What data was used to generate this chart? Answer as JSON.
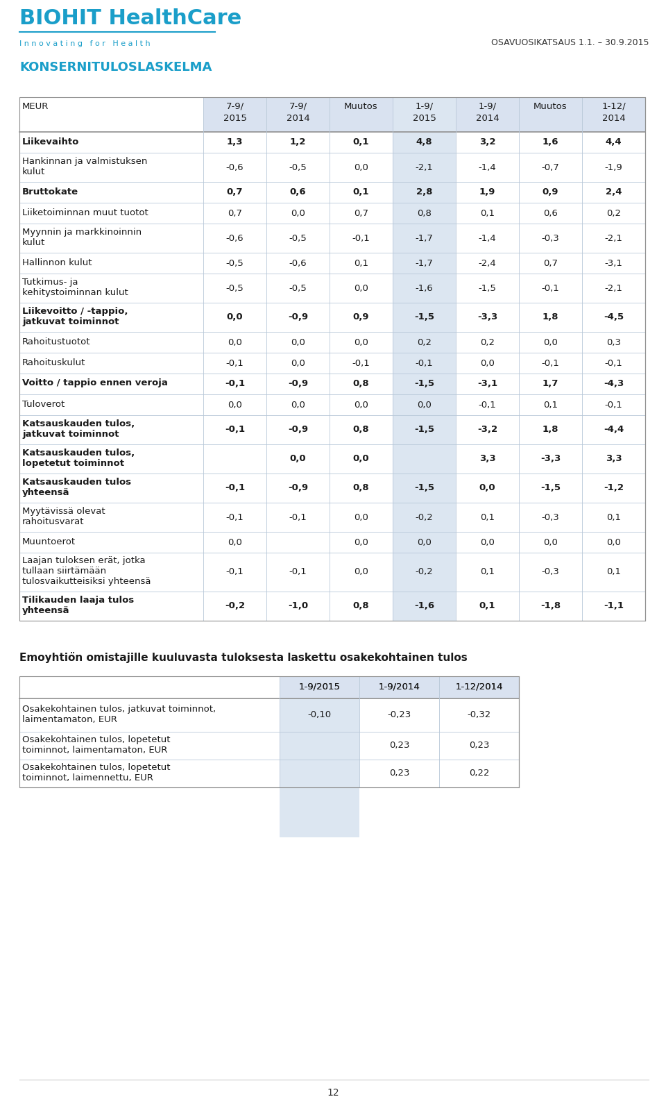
{
  "title_main": "KONSERNITULOSLASKELMA",
  "subtitle": "OSAVUOSIKATSAUS 1.1. – 30.9.2015",
  "logo_text": "BIOHIT HealthCare",
  "logo_sub": "Innovating  for  Health",
  "col_headers": [
    "7-9/\n2015",
    "7-9/\n2014",
    "Muutos",
    "1-9/\n2015",
    "1-9/\n2014",
    "Muutos",
    "1-12/\n2014"
  ],
  "row_label_col": "MEUR",
  "rows": [
    {
      "label": "Liikevaihto",
      "bold": true,
      "values": [
        "1,3",
        "1,2",
        "0,1",
        "4,8",
        "3,2",
        "1,6",
        "4,4"
      ]
    },
    {
      "label": "Hankinnan ja valmistuksen\nkulut",
      "bold": false,
      "values": [
        "-0,6",
        "-0,5",
        "0,0",
        "-2,1",
        "-1,4",
        "-0,7",
        "-1,9"
      ]
    },
    {
      "label": "Bruttokate",
      "bold": true,
      "values": [
        "0,7",
        "0,6",
        "0,1",
        "2,8",
        "1,9",
        "0,9",
        "2,4"
      ]
    },
    {
      "label": "Liiketoiminnan muut tuotot",
      "bold": false,
      "values": [
        "0,7",
        "0,0",
        "0,7",
        "0,8",
        "0,1",
        "0,6",
        "0,2"
      ]
    },
    {
      "label": "Myynnin ja markkinoinnin\nkulut",
      "bold": false,
      "values": [
        "-0,6",
        "-0,5",
        "-0,1",
        "-1,7",
        "-1,4",
        "-0,3",
        "-2,1"
      ]
    },
    {
      "label": "Hallinnon kulut",
      "bold": false,
      "values": [
        "-0,5",
        "-0,6",
        "0,1",
        "-1,7",
        "-2,4",
        "0,7",
        "-3,1"
      ]
    },
    {
      "label": "Tutkimus- ja\nkehitystoiminnan kulut",
      "bold": false,
      "values": [
        "-0,5",
        "-0,5",
        "0,0",
        "-1,6",
        "-1,5",
        "-0,1",
        "-2,1"
      ]
    },
    {
      "label": "Liikevoitto / -tappio,\njatkuvat toiminnot",
      "bold": true,
      "values": [
        "0,0",
        "-0,9",
        "0,9",
        "-1,5",
        "-3,3",
        "1,8",
        "-4,5"
      ]
    },
    {
      "label": "Rahoitustuotot",
      "bold": false,
      "values": [
        "0,0",
        "0,0",
        "0,0",
        "0,2",
        "0,2",
        "0,0",
        "0,3"
      ]
    },
    {
      "label": "Rahoituskulut",
      "bold": false,
      "values": [
        "-0,1",
        "0,0",
        "-0,1",
        "-0,1",
        "0,0",
        "-0,1",
        "-0,1"
      ]
    },
    {
      "label": "Voitto / tappio ennen veroja",
      "bold": true,
      "values": [
        "-0,1",
        "-0,9",
        "0,8",
        "-1,5",
        "-3,1",
        "1,7",
        "-4,3"
      ]
    },
    {
      "label": "Tuloverot",
      "bold": false,
      "values": [
        "0,0",
        "0,0",
        "0,0",
        "0,0",
        "-0,1",
        "0,1",
        "-0,1"
      ]
    },
    {
      "label": "Katsauskauden tulos,\njatkuvat toiminnot",
      "bold": true,
      "values": [
        "-0,1",
        "-0,9",
        "0,8",
        "-1,5",
        "-3,2",
        "1,8",
        "-4,4"
      ]
    },
    {
      "label": "Katsauskauden tulos,\nlopetetut toiminnot",
      "bold": true,
      "values": [
        "",
        "0,0",
        "0,0",
        "",
        "3,3",
        "-3,3",
        "3,3"
      ]
    },
    {
      "label": "Katsauskauden tulos\nyhteensä",
      "bold": true,
      "values": [
        "-0,1",
        "-0,9",
        "0,8",
        "-1,5",
        "0,0",
        "-1,5",
        "-1,2"
      ]
    },
    {
      "label": "Myytävissä olevat\nrahoitusvarat",
      "bold": false,
      "values": [
        "-0,1",
        "-0,1",
        "0,0",
        "-0,2",
        "0,1",
        "-0,3",
        "0,1"
      ]
    },
    {
      "label": "Muuntoerot",
      "bold": false,
      "values": [
        "0,0",
        "",
        "0,0",
        "0,0",
        "0,0",
        "0,0",
        "0,0"
      ]
    },
    {
      "label": "Laajan tuloksen erät, jotka\ntullaan siirtämään\ntulosvaikutteisiksi yhteensä",
      "bold": false,
      "values": [
        "-0,1",
        "-0,1",
        "0,0",
        "-0,2",
        "0,1",
        "-0,3",
        "0,1"
      ]
    },
    {
      "label": "Tilikauden laaja tulos\nyhteensä",
      "bold": true,
      "values": [
        "-0,2",
        "-1,0",
        "0,8",
        "-1,6",
        "0,1",
        "-1,8",
        "-1,1"
      ]
    }
  ],
  "section2_title": "Emoyhtiön omistajille kuuluvasta tuloksesta laskettu osakekohtainen tulos",
  "section2_col_headers": [
    "1-9/2015",
    "1-9/2014",
    "1-12/2014"
  ],
  "section2_rows": [
    {
      "label": "Osakekohtainen tulos, jatkuvat toiminnot,\nlaimentamaton, EUR",
      "bold": false,
      "values": [
        "-0,10",
        "-0,23",
        "-0,32"
      ]
    },
    {
      "label": "Osakekohtainen tulos, lopetetut\ntoiminnot, laimentamaton, EUR",
      "bold": false,
      "values": [
        "",
        "0,23",
        "0,23"
      ]
    },
    {
      "label": "Osakekohtainen tulos, lopetetut\ntoiminnot, laimennettu, EUR",
      "bold": false,
      "values": [
        "",
        "0,23",
        "0,22"
      ]
    }
  ],
  "page_number": "12",
  "header_bg": "#d9e2f0",
  "col4_bg": "#dce6f1",
  "logo_color": "#1a9ec9",
  "title_color": "#1a9ec9",
  "text_color": "#1a1a1a",
  "line_color": "#b8c8d8",
  "strong_line_color": "#909090"
}
